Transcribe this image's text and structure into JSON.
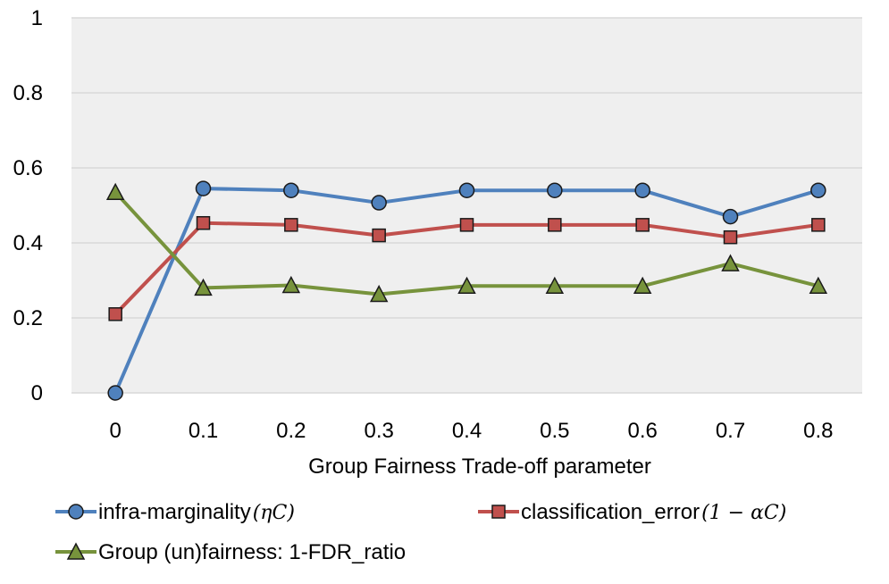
{
  "chart_data": {
    "type": "line",
    "title": "",
    "xlabel": "Group Fairness Trade-off parameter",
    "ylabel": "",
    "categories": [
      "0",
      "0.1",
      "0.2",
      "0.3",
      "0.4",
      "0.5",
      "0.6",
      "0.7",
      "0.8"
    ],
    "ylim": [
      0,
      1
    ],
    "yticks": [
      "0",
      "0.2",
      "0.4",
      "0.6",
      "0.8",
      "1"
    ],
    "grid": true,
    "legend_position": "bottom",
    "series": [
      {
        "name": "infra-marginality",
        "name_math": "(ηC)",
        "color": "#4f81bd",
        "marker": "circle",
        "values": [
          0.0,
          0.545,
          0.54,
          0.507,
          0.54,
          0.54,
          0.54,
          0.47,
          0.54
        ]
      },
      {
        "name": "classification_error",
        "name_math": "(1 − αC)",
        "color": "#c0504d",
        "marker": "square",
        "values": [
          0.21,
          0.453,
          0.448,
          0.42,
          0.448,
          0.448,
          0.448,
          0.415,
          0.448
        ]
      },
      {
        "name": "Group (un)fairness: 1-FDR_ratio",
        "name_math": "",
        "color": "#77933c",
        "marker": "triangle",
        "values": [
          0.535,
          0.28,
          0.287,
          0.263,
          0.285,
          0.285,
          0.285,
          0.345,
          0.285
        ]
      }
    ],
    "plot_background": "#efefef",
    "grid_color": "#d9d9d9"
  }
}
